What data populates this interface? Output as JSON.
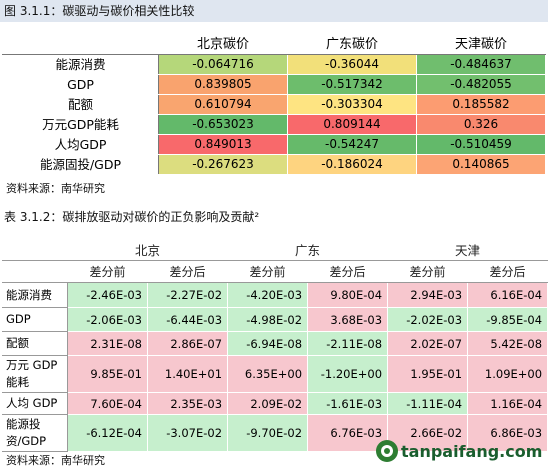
{
  "table1": {
    "title": "图 3.1.1：碳驱动与碳价相关性比较",
    "headers": [
      "",
      "北京碳价",
      "广东碳价",
      "天津碳价"
    ],
    "rows": [
      {
        "label": "能源消费",
        "cells": [
          {
            "v": "-0.064716",
            "c": "#b5d77a"
          },
          {
            "v": "-0.36044",
            "c": "#f2e07a"
          },
          {
            "v": "-0.484637",
            "c": "#70be6e"
          }
        ]
      },
      {
        "label": "GDP",
        "cells": [
          {
            "v": "0.839805",
            "c": "#f9a36e"
          },
          {
            "v": "-0.517342",
            "c": "#6dbd6c"
          },
          {
            "v": "-0.482055",
            "c": "#72bf6e"
          }
        ]
      },
      {
        "label": "配额",
        "cells": [
          {
            "v": "0.610794",
            "c": "#f9a56f"
          },
          {
            "v": "-0.303304",
            "c": "#fee482"
          },
          {
            "v": "0.185582",
            "c": "#fc9c71"
          }
        ]
      },
      {
        "label": "万元GDP能耗",
        "cells": [
          {
            "v": "-0.653023",
            "c": "#63b96a"
          },
          {
            "v": "0.809144",
            "c": "#f8696b"
          },
          {
            "v": "0.326",
            "c": "#f9896e"
          }
        ]
      },
      {
        "label": "人均GDP",
        "cells": [
          {
            "v": "0.849013",
            "c": "#f8696b"
          },
          {
            "v": "-0.54247",
            "c": "#66ba6a"
          },
          {
            "v": "-0.510459",
            "c": "#63b96a"
          }
        ]
      },
      {
        "label": "能源固投/GDP",
        "cells": [
          {
            "v": "-0.267623",
            "c": "#dcdd7f"
          },
          {
            "v": "-0.186024",
            "c": "#fed480"
          },
          {
            "v": "0.140865",
            "c": "#fca474"
          }
        ]
      }
    ],
    "source": "资料来源：南华研究"
  },
  "table2": {
    "title": "表 3.1.2：碳排放驱动对碳价的正负影响及贡献²",
    "groups": [
      "北京",
      "广东",
      "天津"
    ],
    "subheaders": [
      "差分前",
      "差分后",
      "差分前",
      "差分后",
      "差分前",
      "差分后"
    ],
    "rows": [
      {
        "label": "能源消费",
        "cells": [
          {
            "v": "-2.46E-03",
            "c": "green"
          },
          {
            "v": "-2.27E-02",
            "c": "green"
          },
          {
            "v": "-4.20E-03",
            "c": "green"
          },
          {
            "v": "9.80E-04",
            "c": "pink"
          },
          {
            "v": "2.94E-03",
            "c": "pink"
          },
          {
            "v": "6.16E-04",
            "c": "pink"
          }
        ]
      },
      {
        "label": "GDP",
        "cells": [
          {
            "v": "-2.06E-03",
            "c": "green"
          },
          {
            "v": "-6.44E-03",
            "c": "green"
          },
          {
            "v": "-4.98E-02",
            "c": "green"
          },
          {
            "v": "3.68E-03",
            "c": "pink"
          },
          {
            "v": "-2.02E-03",
            "c": "green"
          },
          {
            "v": "-9.85E-04",
            "c": "green"
          }
        ]
      },
      {
        "label": "配额",
        "cells": [
          {
            "v": "2.31E-08",
            "c": "pink"
          },
          {
            "v": "2.86E-07",
            "c": "pink"
          },
          {
            "v": "-6.94E-08",
            "c": "green"
          },
          {
            "v": "-2.11E-08",
            "c": "green"
          },
          {
            "v": "2.02E-07",
            "c": "pink"
          },
          {
            "v": "5.42E-08",
            "c": "pink"
          }
        ]
      },
      {
        "label": "万元 GDP 能耗",
        "cells": [
          {
            "v": "9.85E-01",
            "c": "pink"
          },
          {
            "v": "1.40E+01",
            "c": "pink"
          },
          {
            "v": "6.35E+00",
            "c": "pink"
          },
          {
            "v": "-1.20E+00",
            "c": "green"
          },
          {
            "v": "1.95E-01",
            "c": "pink"
          },
          {
            "v": "1.09E+00",
            "c": "pink"
          }
        ]
      },
      {
        "label": "人均 GDP",
        "cells": [
          {
            "v": "7.60E-04",
            "c": "pink"
          },
          {
            "v": "2.35E-03",
            "c": "pink"
          },
          {
            "v": "2.09E-02",
            "c": "pink"
          },
          {
            "v": "-1.61E-03",
            "c": "green"
          },
          {
            "v": "-1.11E-04",
            "c": "green"
          },
          {
            "v": "1.16E-04",
            "c": "pink"
          }
        ]
      },
      {
        "label": "能源投资/GDP",
        "cells": [
          {
            "v": "-6.12E-04",
            "c": "green"
          },
          {
            "v": "-3.07E-02",
            "c": "green"
          },
          {
            "v": "-9.70E-02",
            "c": "green"
          },
          {
            "v": "6.76E-03",
            "c": "pink"
          },
          {
            "v": "2.66E-02",
            "c": "pink"
          },
          {
            "v": "6.86E-03",
            "c": "pink"
          }
        ]
      }
    ],
    "source": "资料来源：南华研究"
  },
  "watermark": {
    "text": "tanpaifang.com",
    "icon": "tanpaifang-logo-icon"
  }
}
